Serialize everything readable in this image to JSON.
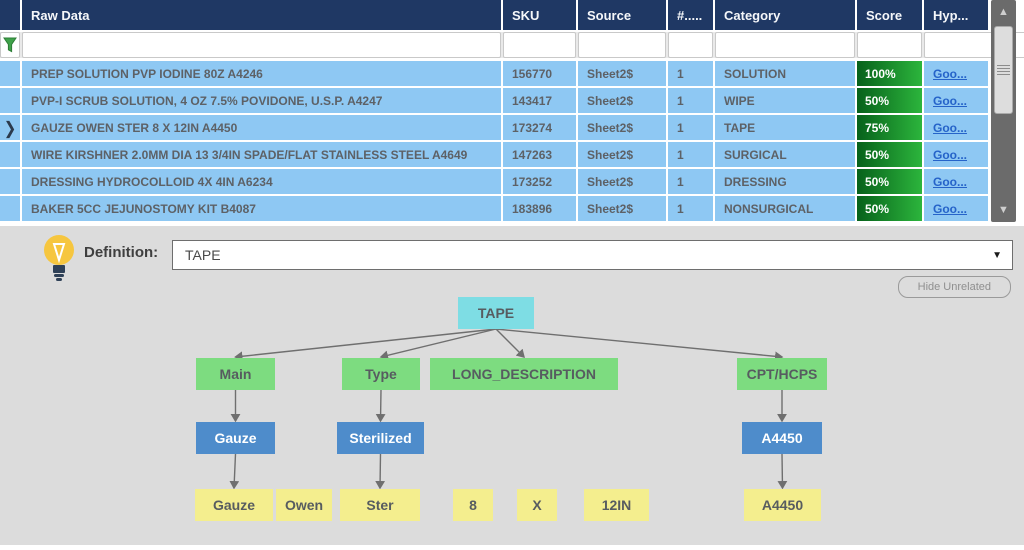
{
  "colors": {
    "header_bg": "#1F3864",
    "row_bg": "#8EC8F3",
    "score_gradient_start": "#07611b",
    "score_gradient_end": "#2cb53c",
    "link": "#2563c9",
    "panel_bg": "#dcdcdc",
    "node_root": "#7EDDE4",
    "node_attribute": "#7DDC80",
    "node_value": "#4E8CCB",
    "node_token": "#F4EE8E"
  },
  "icons": {
    "filter": "funnel-icon",
    "bulb": "lightbulb-icon",
    "dropdown_caret": "▼",
    "scroll_up": "▲",
    "scroll_down": "▼",
    "selected_row_marker": "❯"
  },
  "table": {
    "columns": [
      "Raw Data",
      "SKU",
      "Source",
      "#.....",
      "Category",
      "Score",
      "Hyp..."
    ],
    "filter_values": [
      "",
      "",
      "",
      "",
      "",
      "",
      ""
    ],
    "rows": [
      {
        "raw": "PREP SOLUTION PVP IODINE 80Z A4246",
        "sku": "156770",
        "source": "Sheet2$",
        "num": "1",
        "category": "SOLUTION",
        "score": "100%",
        "hyp": "Goo...",
        "selected": false
      },
      {
        "raw": "PVP-I SCRUB SOLUTION, 4 OZ 7.5% POVIDONE, U.S.P. A4247",
        "sku": "143417",
        "source": "Sheet2$",
        "num": "1",
        "category": "WIPE",
        "score": "50%",
        "hyp": "Goo...",
        "selected": false
      },
      {
        "raw": "GAUZE OWEN STER 8 X 12IN A4450",
        "sku": "173274",
        "source": "Sheet2$",
        "num": "1",
        "category": "TAPE",
        "score": "75%",
        "hyp": "Goo...",
        "selected": true
      },
      {
        "raw": "WIRE KIRSHNER 2.0MM DIA 13 3/4IN SPADE/FLAT STAINLESS STEEL A4649",
        "sku": "147263",
        "source": "Sheet2$",
        "num": "1",
        "category": "SURGICAL",
        "score": "50%",
        "hyp": "Goo...",
        "selected": false
      },
      {
        "raw": "DRESSING HYDROCOLLOID 4X 4IN A6234",
        "sku": "173252",
        "source": "Sheet2$",
        "num": "1",
        "category": "DRESSING",
        "score": "50%",
        "hyp": "Goo...",
        "selected": false
      },
      {
        "raw": "BAKER 5CC JEJUNOSTOMY KIT B4087",
        "sku": "183896",
        "source": "Sheet2$",
        "num": "1",
        "category": "NONSURGICAL",
        "score": "50%",
        "hyp": "Goo...",
        "selected": false
      }
    ]
  },
  "definition": {
    "label": "Definition:",
    "value": "TAPE",
    "hide_button_label": "Hide Unrelated"
  },
  "tree": {
    "nodes": [
      {
        "id": "root-tape",
        "label": "TAPE",
        "type": "root"
      },
      {
        "id": "attr-main",
        "label": "Main",
        "type": "attribute"
      },
      {
        "id": "attr-type",
        "label": "Type",
        "type": "attribute"
      },
      {
        "id": "attr-long-description",
        "label": "LONG_DESCRIPTION",
        "type": "attribute"
      },
      {
        "id": "attr-cpt-hcps",
        "label": "CPT/HCPS",
        "type": "attribute"
      },
      {
        "id": "val-gauze",
        "label": "Gauze",
        "type": "value"
      },
      {
        "id": "val-sterilized",
        "label": "Sterilized",
        "type": "value"
      },
      {
        "id": "val-a4450",
        "label": "A4450",
        "type": "value"
      },
      {
        "id": "tok-gauze",
        "label": "Gauze",
        "type": "token"
      },
      {
        "id": "tok-owen",
        "label": "Owen",
        "type": "token"
      },
      {
        "id": "tok-ster",
        "label": "Ster",
        "type": "token"
      },
      {
        "id": "tok-8",
        "label": "8",
        "type": "token"
      },
      {
        "id": "tok-x",
        "label": "X",
        "type": "token"
      },
      {
        "id": "tok-12in",
        "label": "12IN",
        "type": "token"
      },
      {
        "id": "tok-a4450",
        "label": "A4450",
        "type": "token"
      }
    ],
    "edges": [
      [
        "root-tape",
        "attr-main"
      ],
      [
        "root-tape",
        "attr-type"
      ],
      [
        "root-tape",
        "attr-long-description"
      ],
      [
        "root-tape",
        "attr-cpt-hcps"
      ],
      [
        "attr-main",
        "val-gauze"
      ],
      [
        "val-gauze",
        "tok-gauze"
      ],
      [
        "attr-type",
        "val-sterilized"
      ],
      [
        "val-sterilized",
        "tok-ster"
      ],
      [
        "attr-cpt-hcps",
        "val-a4450"
      ],
      [
        "val-a4450",
        "tok-a4450"
      ]
    ]
  }
}
